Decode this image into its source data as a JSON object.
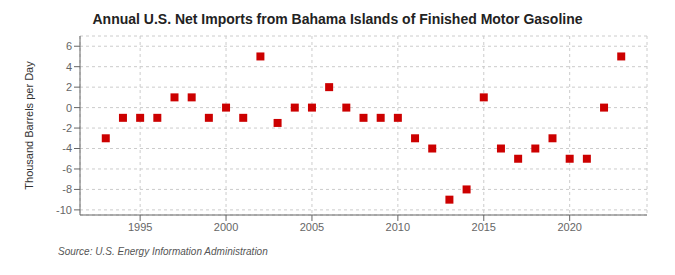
{
  "chart_data": {
    "type": "scatter",
    "title": "Annual U.S. Net Imports from Bahama Islands of Finished Motor Gasoline",
    "ylabel": "Thousand Barrels per Day",
    "source": "Source: U.S. Energy Information Administration",
    "x": [
      1993,
      1994,
      1995,
      1996,
      1997,
      1998,
      1999,
      2000,
      2001,
      2002,
      2003,
      2004,
      2005,
      2006,
      2007,
      2008,
      2009,
      2010,
      2011,
      2012,
      2013,
      2014,
      2015,
      2016,
      2017,
      2018,
      2019,
      2020,
      2021,
      2022,
      2023
    ],
    "values": [
      -3.0,
      -1.0,
      -1.0,
      -1.0,
      1.0,
      1.0,
      -1.0,
      0.0,
      -1.0,
      5.0,
      -1.5,
      0.0,
      0.0,
      2.0,
      0.0,
      -1.0,
      -1.0,
      -1.0,
      -3.0,
      -4.0,
      -9.0,
      -8.0,
      1.0,
      -4.0,
      -5.0,
      -4.0,
      -3.0,
      -5.0,
      -5.0,
      0.0,
      5.0
    ],
    "color": "#cc0000",
    "marker": "square",
    "xlim": [
      1991.5,
      2024.5
    ],
    "xticks": [
      1995,
      2000,
      2005,
      2010,
      2015,
      2020
    ],
    "ylim": [
      -10.5,
      7
    ],
    "yticks": [
      -10,
      -8,
      -6,
      -4,
      -2,
      0,
      2,
      4,
      6
    ],
    "grid": true
  }
}
